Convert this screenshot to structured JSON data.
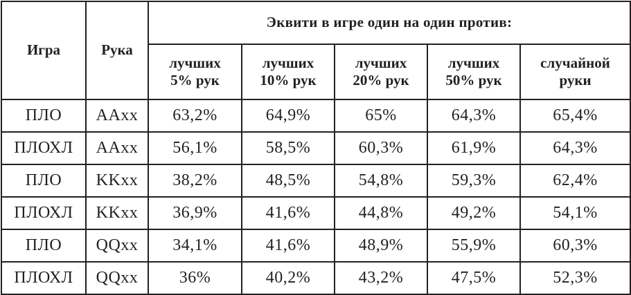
{
  "table": {
    "header": {
      "game": "Игра",
      "hand": "Рука",
      "group": "Эквити в игре один на один против:",
      "columns": [
        [
          "лучших",
          "5% рук"
        ],
        [
          "лучших",
          "10% рук"
        ],
        [
          "лучших",
          "20% рук"
        ],
        [
          "лучших",
          "50% рук"
        ],
        [
          "случайной",
          "руки"
        ]
      ]
    },
    "rows": [
      {
        "game": "ПЛО",
        "hand": "AAxx",
        "values": [
          "63,2%",
          "64,9%",
          "65%",
          "64,3%",
          "65,4%"
        ]
      },
      {
        "game": "ПЛОХЛ",
        "hand": "AAxx",
        "values": [
          "56,1%",
          "58,5%",
          "60,3%",
          "61,9%",
          "64,3%"
        ]
      },
      {
        "game": "ПЛО",
        "hand": "KKxx",
        "values": [
          "38,2%",
          "48,5%",
          "54,8%",
          "59,3%",
          "62,4%"
        ]
      },
      {
        "game": "ПЛОХЛ",
        "hand": "KKxx",
        "values": [
          "36,9%",
          "41,6%",
          "44,8%",
          "49,2%",
          "54,1%"
        ]
      },
      {
        "game": "ПЛО",
        "hand": "QQxx",
        "values": [
          "34,1%",
          "41,6%",
          "48,9%",
          "55,9%",
          "60,3%"
        ]
      },
      {
        "game": "ПЛОХЛ",
        "hand": "QQxx",
        "values": [
          "36%",
          "40,2%",
          "43,2%",
          "47,5%",
          "52,3%"
        ]
      }
    ]
  }
}
